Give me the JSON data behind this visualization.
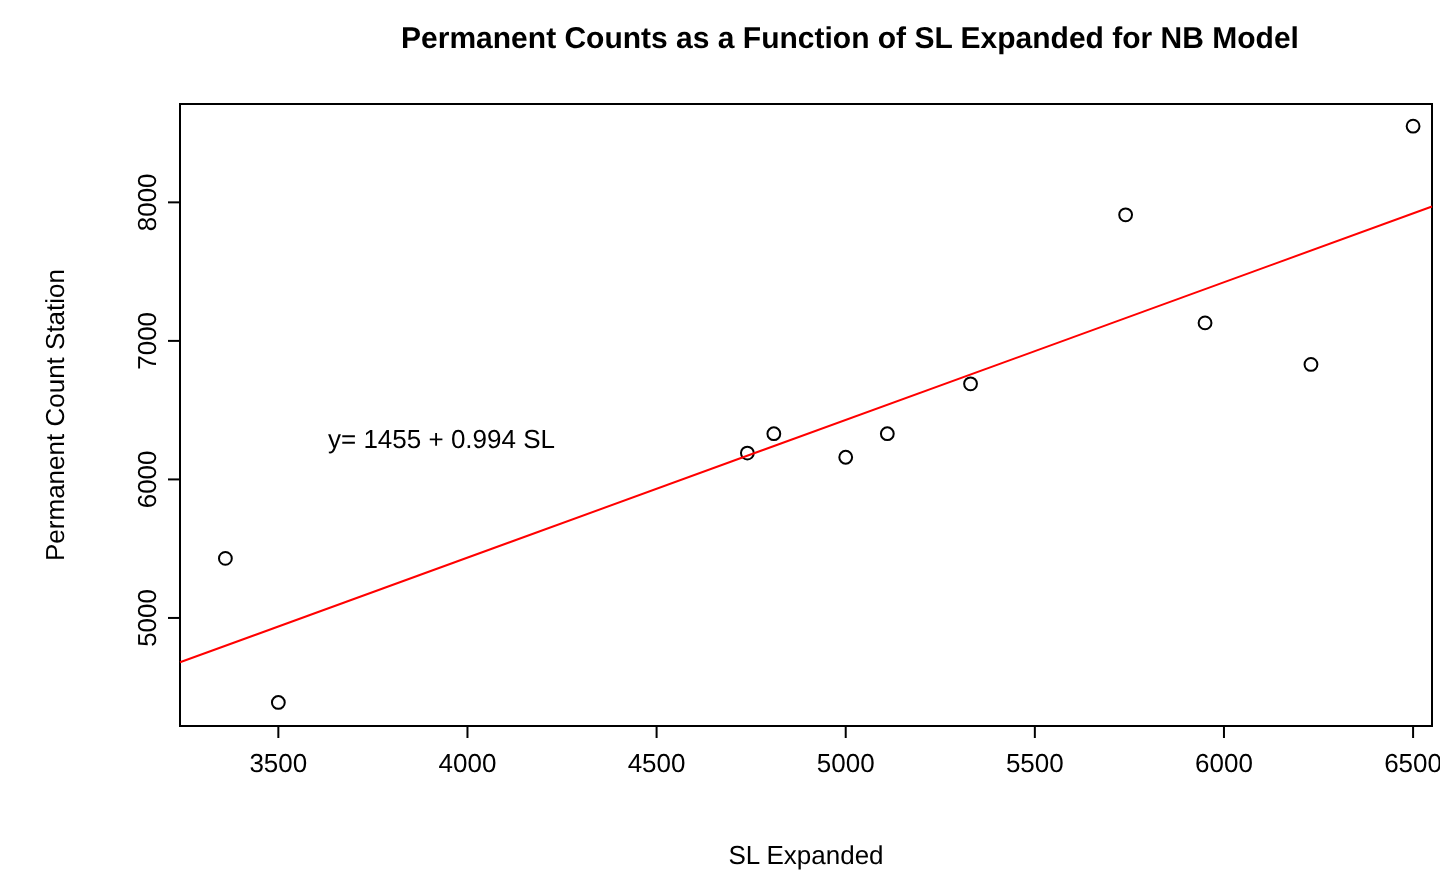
{
  "chart_data": {
    "type": "scatter",
    "title": "Permanent Counts as a Function of SL Expanded for NB Model",
    "xlabel": "SL Expanded",
    "ylabel": "Permanent Count Station",
    "xlim": [
      3240,
      6550
    ],
    "ylim": [
      4220,
      8710
    ],
    "xticks": [
      3500,
      4000,
      4500,
      5000,
      5500,
      6000,
      6500
    ],
    "yticks": [
      5000,
      6000,
      7000,
      8000
    ],
    "grid": false,
    "annotations": [
      "y= 1455 + 0.994 SL"
    ],
    "series": [
      {
        "color": "#000000",
        "marker": "circle",
        "x": [
          3360,
          3500,
          4740,
          4810,
          5000,
          5110,
          5330,
          5740,
          5950,
          6230,
          6500
        ],
        "values": [
          5430,
          4390,
          6190,
          6330,
          6160,
          6330,
          6690,
          7910,
          7130,
          6830,
          8550
        ]
      },
      {
        "type": "line",
        "color": "#ff0000",
        "line_style": "solid",
        "x": [
          3240,
          6550
        ],
        "values": [
          4680,
          7970
        ]
      }
    ]
  }
}
